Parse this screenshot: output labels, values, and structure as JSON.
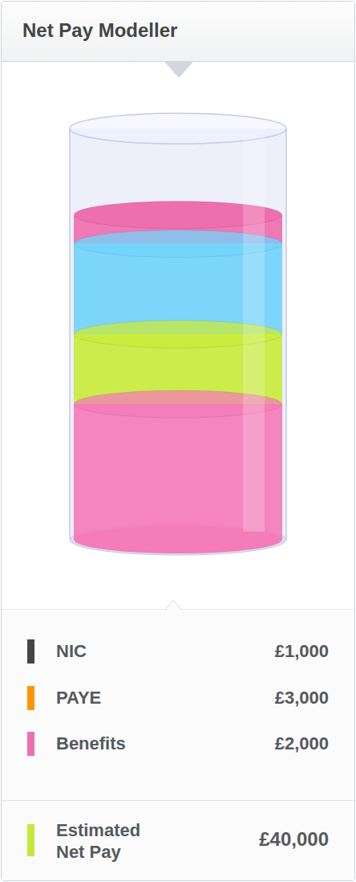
{
  "header": {
    "title": "Net Pay Modeller"
  },
  "chart_data": {
    "type": "bar",
    "stacked": true,
    "categories": [
      null
    ],
    "tick_labels": false,
    "grid": false,
    "ylim": [
      0,
      100
    ],
    "yticks": [],
    "series": [
      {
        "color": "#f47cb8",
        "values": [
          33
        ]
      },
      {
        "color": "#c9ec3c",
        "values": [
          17
        ]
      },
      {
        "color": "#72d4fb",
        "values": [
          22
        ]
      },
      {
        "color": "#ee6fae",
        "values": [
          7
        ]
      }
    ]
  },
  "legend": {
    "rows": [
      {
        "label": "NIC",
        "value": "£1,000",
        "color": "#454545"
      },
      {
        "label": "PAYE",
        "value": "£3,000",
        "color": "#ff9408"
      },
      {
        "label": "Benefits",
        "value": "£2,000",
        "color": "#ee6fae"
      }
    ],
    "total": {
      "label": "Estimated Net Pay",
      "value": "£40,000",
      "color": "#c3ea3a"
    }
  }
}
